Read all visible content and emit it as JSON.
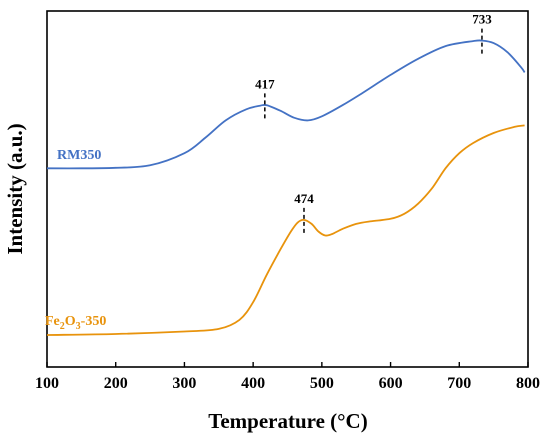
{
  "chart_data": {
    "type": "line",
    "xlabel": "Temperature (°C)",
    "ylabel": "Intensity (a.u.)",
    "xlim": [
      100,
      800
    ],
    "xticks": [
      100,
      200,
      300,
      400,
      500,
      600,
      700,
      800
    ],
    "y_scale": "arbitrary (no y tick labels)",
    "grid": false,
    "series": [
      {
        "name": "RM350",
        "color": "#4472C4",
        "x": [
          100,
          150,
          200,
          250,
          300,
          330,
          360,
          390,
          410,
          420,
          440,
          460,
          480,
          500,
          530,
          560,
          600,
          640,
          680,
          720,
          733,
          750,
          770,
          790,
          795
        ],
        "y": [
          0.33,
          0.33,
          0.331,
          0.336,
          0.36,
          0.39,
          0.425,
          0.447,
          0.454,
          0.455,
          0.444,
          0.43,
          0.425,
          0.433,
          0.455,
          0.48,
          0.515,
          0.547,
          0.572,
          0.582,
          0.583,
          0.578,
          0.56,
          0.53,
          0.52
        ]
      },
      {
        "name": "Fe2O3-350",
        "color": "#E8930C",
        "x": [
          100,
          200,
          300,
          350,
          380,
          400,
          420,
          440,
          455,
          465,
          474,
          485,
          495,
          505,
          515,
          530,
          550,
          570,
          600,
          620,
          640,
          660,
          680,
          700,
          720,
          750,
          780,
          795
        ],
        "y": [
          0.0,
          0.002,
          0.007,
          0.012,
          0.03,
          0.065,
          0.12,
          0.17,
          0.205,
          0.223,
          0.228,
          0.22,
          0.205,
          0.197,
          0.2,
          0.21,
          0.22,
          0.225,
          0.23,
          0.24,
          0.26,
          0.29,
          0.33,
          0.36,
          0.38,
          0.4,
          0.412,
          0.415
        ]
      }
    ],
    "annotations": [
      {
        "label": "417",
        "x": 417,
        "series": "RM350"
      },
      {
        "label": "733",
        "x": 733,
        "series": "RM350"
      },
      {
        "label": "474",
        "x": 474,
        "series": "Fe2O3-350"
      }
    ],
    "legend_labels": {
      "rm350": "RM350",
      "fe_main": "Fe",
      "fe_sub1": "2",
      "fe_mid": "O",
      "fe_sub2": "3",
      "fe_tail": "-350"
    }
  }
}
